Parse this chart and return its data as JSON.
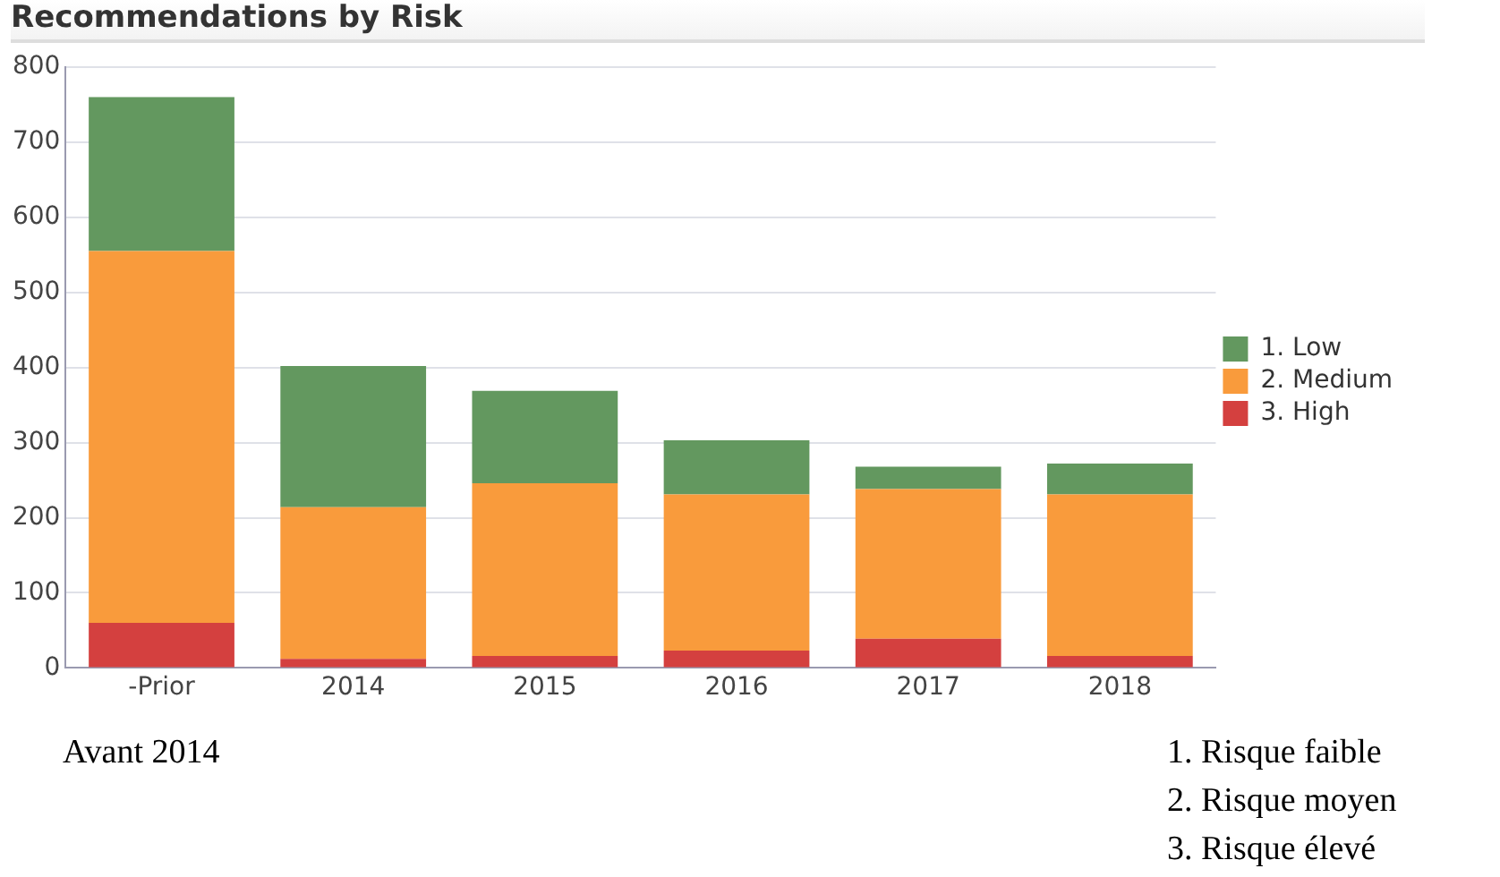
{
  "chart_data": {
    "type": "bar",
    "title": "Recommendations by Risk",
    "categories": [
      "-Prior",
      "2014",
      "2015",
      "2016",
      "2017",
      "2018"
    ],
    "stacked": true,
    "series": [
      {
        "name": "3. High",
        "color": "#d4403f",
        "values": [
          60,
          12,
          16,
          23,
          39,
          16
        ]
      },
      {
        "name": "2. Medium",
        "color": "#f99b3c",
        "values": [
          495,
          202,
          230,
          208,
          199,
          215
        ]
      },
      {
        "name": "1. Low",
        "color": "#63985f",
        "values": [
          205,
          188,
          123,
          72,
          30,
          41
        ]
      }
    ],
    "ylim": [
      0,
      800
    ],
    "yticks": [
      0,
      100,
      200,
      300,
      400,
      500,
      600,
      700,
      800
    ],
    "grid": "y",
    "legend": "right",
    "annotations": [
      "Avant 2014",
      "1. Risque faible",
      "2. Risque moyen",
      "3. Risque élevé"
    ]
  }
}
